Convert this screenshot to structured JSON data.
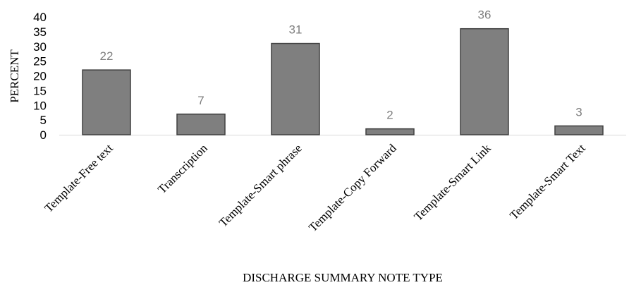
{
  "chart_data": {
    "type": "bar",
    "categories": [
      "Template-Free text",
      "Transcription",
      "Template-Smart phrase",
      "Template-Copy Forward",
      "Template-Smart Link",
      "Template-Smart Text"
    ],
    "values": [
      22,
      7,
      31,
      2,
      36,
      3
    ],
    "data_labels": [
      "22",
      "7",
      "31",
      "2",
      "36",
      "3"
    ],
    "xlabel": "DISCHARGE SUMMARY NOTE TYPE",
    "ylabel": "PERCENT",
    "ylim": [
      0,
      40
    ],
    "yticks": [
      0,
      5,
      10,
      15,
      20,
      25,
      30,
      35,
      40
    ],
    "grid": false,
    "legend": "none",
    "bar_color": "#7f7f7f",
    "bar_edge_color": "#404040",
    "label_color": "#7f7f7f"
  }
}
